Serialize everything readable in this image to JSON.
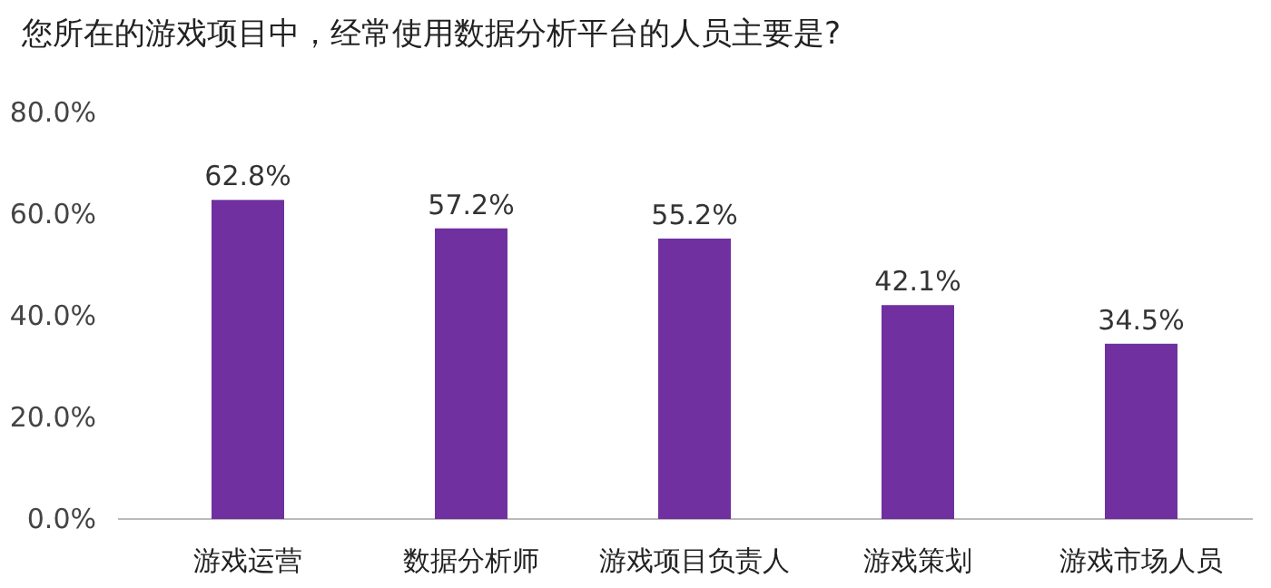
{
  "chart_data": {
    "type": "bar",
    "title": "您所在的游戏项目中，经常使用数据分析平台的人员主要是?",
    "categories": [
      "游戏运营",
      "数据分析师",
      "游戏项目负责人",
      "游戏策划",
      "游戏市场人员"
    ],
    "values": [
      62.8,
      57.2,
      55.2,
      42.1,
      34.5
    ],
    "value_labels": [
      "62.8%",
      "57.2%",
      "55.2%",
      "42.1%",
      "34.5%"
    ],
    "color": "#7030a0",
    "ylim": [
      0,
      80
    ],
    "yticks": [
      {
        "value": 0,
        "label": "0.0%"
      },
      {
        "value": 20,
        "label": "20.0%"
      },
      {
        "value": 40,
        "label": "40.0%"
      },
      {
        "value": 60,
        "label": "60.0%"
      },
      {
        "value": 80,
        "label": "80.0%"
      }
    ],
    "grid": false
  }
}
